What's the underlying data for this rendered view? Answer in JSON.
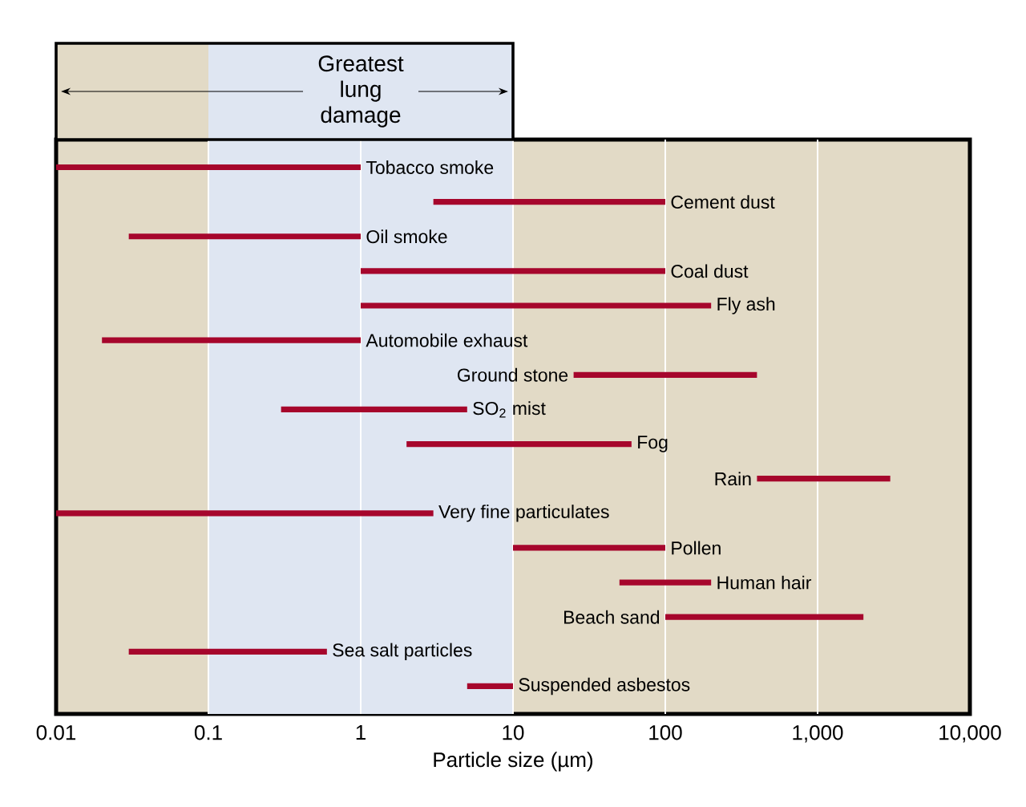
{
  "chart_data": {
    "type": "bar",
    "orientation": "horizontal",
    "xlabel": "Particle size (µm)",
    "categories": [
      "Tobacco smoke",
      "Cement dust",
      "Oil smoke",
      "Coal dust",
      "Fly ash",
      "Automobile exhaust",
      "Ground stone",
      "SO$_{2}$ mist",
      "Fog",
      "Rain",
      "Very fine particulates",
      "Pollen",
      "Human hair",
      "Beach sand",
      "Sea salt particles",
      "Suspended asbestos"
    ],
    "base": [
      0.01,
      3,
      0.03,
      1,
      1,
      0.02,
      25,
      0.3,
      2,
      400,
      0.01,
      10,
      50,
      100,
      0.03,
      5
    ],
    "values": [
      0.99,
      97,
      0.97,
      99,
      199,
      0.98,
      375,
      4.7,
      58,
      2600,
      2.99,
      90,
      150,
      1900,
      0.57,
      5
    ],
    "color": "#a6062c",
    "log": "x",
    "xlim": [
      0.01,
      10000
    ],
    "xticks": [
      0.01,
      0.1,
      1,
      10,
      100,
      {
        "value": 1000,
        "label": "1,000"
      },
      {
        "value": 10000,
        "label": "10,000"
      }
    ],
    "grid": "x",
    "tick_labels": "x",
    "bands": [
      {
        "axis": "x",
        "from": 0.1,
        "to": 10,
        "label": "Greatest lung damage",
        "color": "#dfe6f2"
      }
    ]
  }
}
